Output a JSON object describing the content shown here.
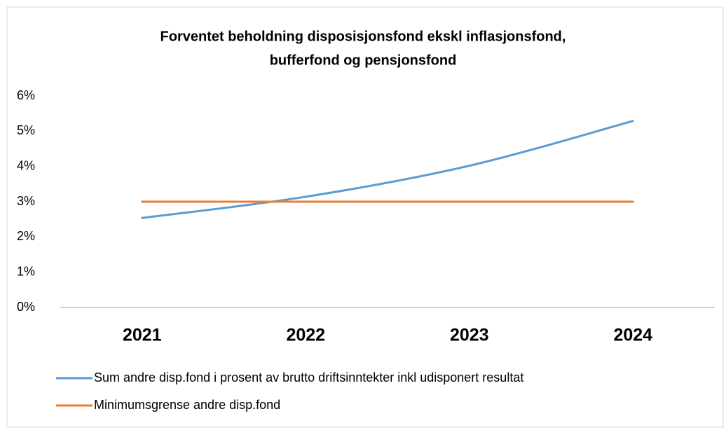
{
  "chart_data": {
    "type": "line",
    "title": [
      "Forventet beholdning disposisjonsfond ekskl inflasjonsfond,",
      "bufferfond og pensjonsfond"
    ],
    "categories": [
      "2021",
      "2022",
      "2023",
      "2024"
    ],
    "series": [
      {
        "name": "Sum andre disp.fond i prosent av brutto driftsinntekter inkl udisponert resultat",
        "color": "#5b9bd5",
        "values": [
          2.54,
          3.14,
          4.02,
          5.29
        ]
      },
      {
        "name": "Minimumsgrense andre disp.fond",
        "color": "#ed7d31",
        "values": [
          3,
          3,
          3,
          3
        ]
      }
    ],
    "ylim": [
      0,
      6
    ],
    "yticks": [
      {
        "value": 0,
        "label": "0%"
      },
      {
        "value": 1,
        "label": "1%"
      },
      {
        "value": 2,
        "label": "2%"
      },
      {
        "value": 3,
        "label": "3%"
      },
      {
        "value": 4,
        "label": "4%"
      },
      {
        "value": 5,
        "label": "5%"
      },
      {
        "value": 6,
        "label": "6%"
      }
    ],
    "smooth": true,
    "legend": "bottom"
  }
}
